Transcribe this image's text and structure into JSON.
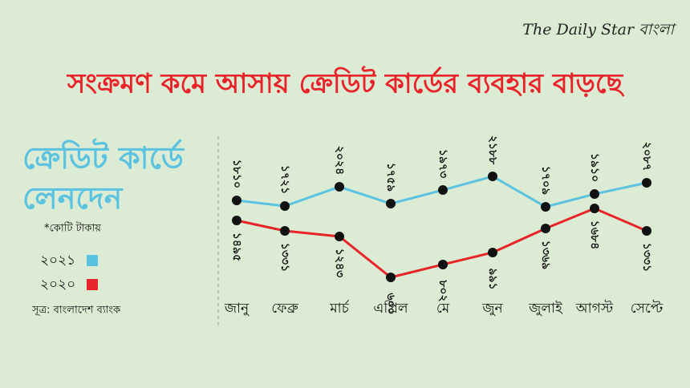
{
  "brand": "The Daily Star বাংলা",
  "chart_data": {
    "type": "line",
    "title": "সংক্রমণ কমে আসায় ক্রেডিট কার্ডের ব্যবহার বাড়ছে",
    "subtitle": "ক্রেডিট কার্ডে লেনদেন",
    "unit_note": "*কোটি টাকায়",
    "source": "সূত্র: বাংলাদেশ ব্যাংক",
    "categories": [
      "জানু",
      "ফেব্রু",
      "মার্চ",
      "এপ্রিল",
      "মে",
      "জুন",
      "জুলাই",
      "আগস্ট",
      "সেপ্টে"
    ],
    "series": [
      {
        "name": "২০২১",
        "color": "#5bc3e0",
        "values": [
          1810,
          1721,
          2024,
          1759,
          1973,
          2188,
          1709,
          1910,
          2087
        ],
        "value_labels": [
          "১৮১০",
          "১৭২১",
          "২০২৪",
          "১৭৫৯",
          "১৯৭৩",
          "২১৮৮",
          "১৭০৯",
          "১৯১০",
          "২০৮৭"
        ]
      },
      {
        "name": "২০২০",
        "color": "#e8242a",
        "values": [
          1495,
          1331,
          1243,
          600,
          802,
          991,
          1369,
          1684,
          1331
        ],
        "value_labels": [
          "১৪৯৫",
          "১৩৩১",
          "১২৪৩",
          "৬০০",
          "৮০২",
          "৯৯১",
          "১৩৬৯",
          "১৬৮৪",
          "১৩৩১"
        ]
      }
    ]
  }
}
